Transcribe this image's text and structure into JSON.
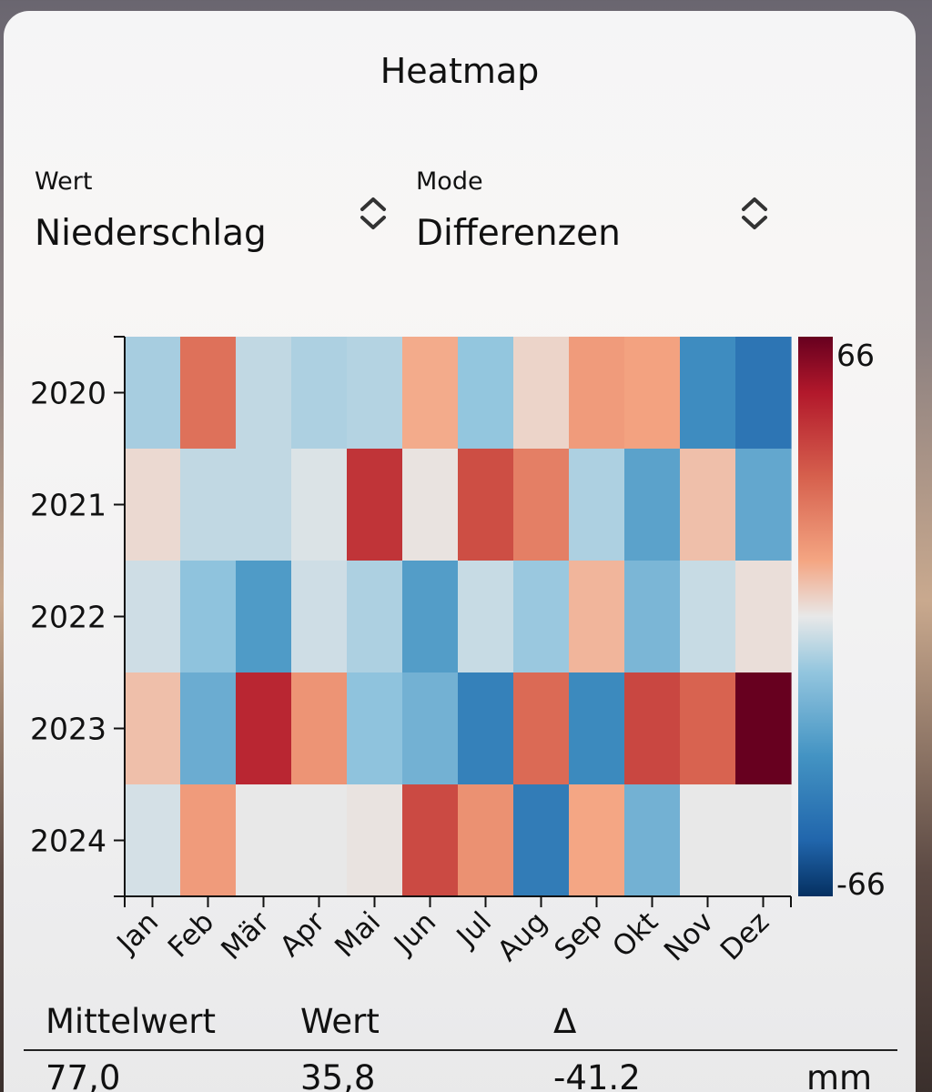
{
  "sheet": {
    "title": "Heatmap"
  },
  "controls": {
    "wert": {
      "label": "Wert",
      "value": "Niederschlag",
      "icon": "chevron-up-down-icon"
    },
    "mode": {
      "label": "Mode",
      "value": "Differenzen",
      "icon": "chevron-up-down-icon"
    }
  },
  "chart_data": {
    "type": "heatmap",
    "title": "",
    "xlabel": "",
    "ylabel": "",
    "x": [
      "Jan",
      "Feb",
      "Mär",
      "Apr",
      "Mai",
      "Jun",
      "Jul",
      "Aug",
      "Sep",
      "Okt",
      "Nov",
      "Dez"
    ],
    "y": [
      "2020",
      "2021",
      "2022",
      "2023",
      "2024"
    ],
    "values": [
      [
        -10,
        28,
        -6,
        -9,
        -8,
        12,
        -13,
        4,
        16,
        14,
        -36,
        -46
      ],
      [
        3,
        -6,
        -6,
        -2,
        45,
        1,
        38,
        24,
        -9,
        -27,
        8,
        -25
      ],
      [
        -4,
        -14,
        -30,
        -4,
        -9,
        -29,
        -5,
        -12,
        10,
        -19,
        -5,
        2
      ],
      [
        8,
        -23,
        49,
        18,
        -14,
        -21,
        -41,
        30,
        -37,
        40,
        32,
        66
      ],
      [
        -3,
        16,
        0,
        0,
        1,
        39,
        19,
        -43,
        13,
        -21,
        null,
        null
      ]
    ],
    "colorbar": {
      "min": -66,
      "max": 66,
      "min_label": "-66",
      "max_label": "66",
      "colormap": "RdBu_r"
    },
    "missing_color": "#e8e8e8"
  },
  "stats": {
    "headers": [
      "Mittelwert",
      "Wert",
      "Δ"
    ],
    "values": [
      "77,0",
      "35,8",
      "-41.2"
    ],
    "unit": "mm"
  }
}
